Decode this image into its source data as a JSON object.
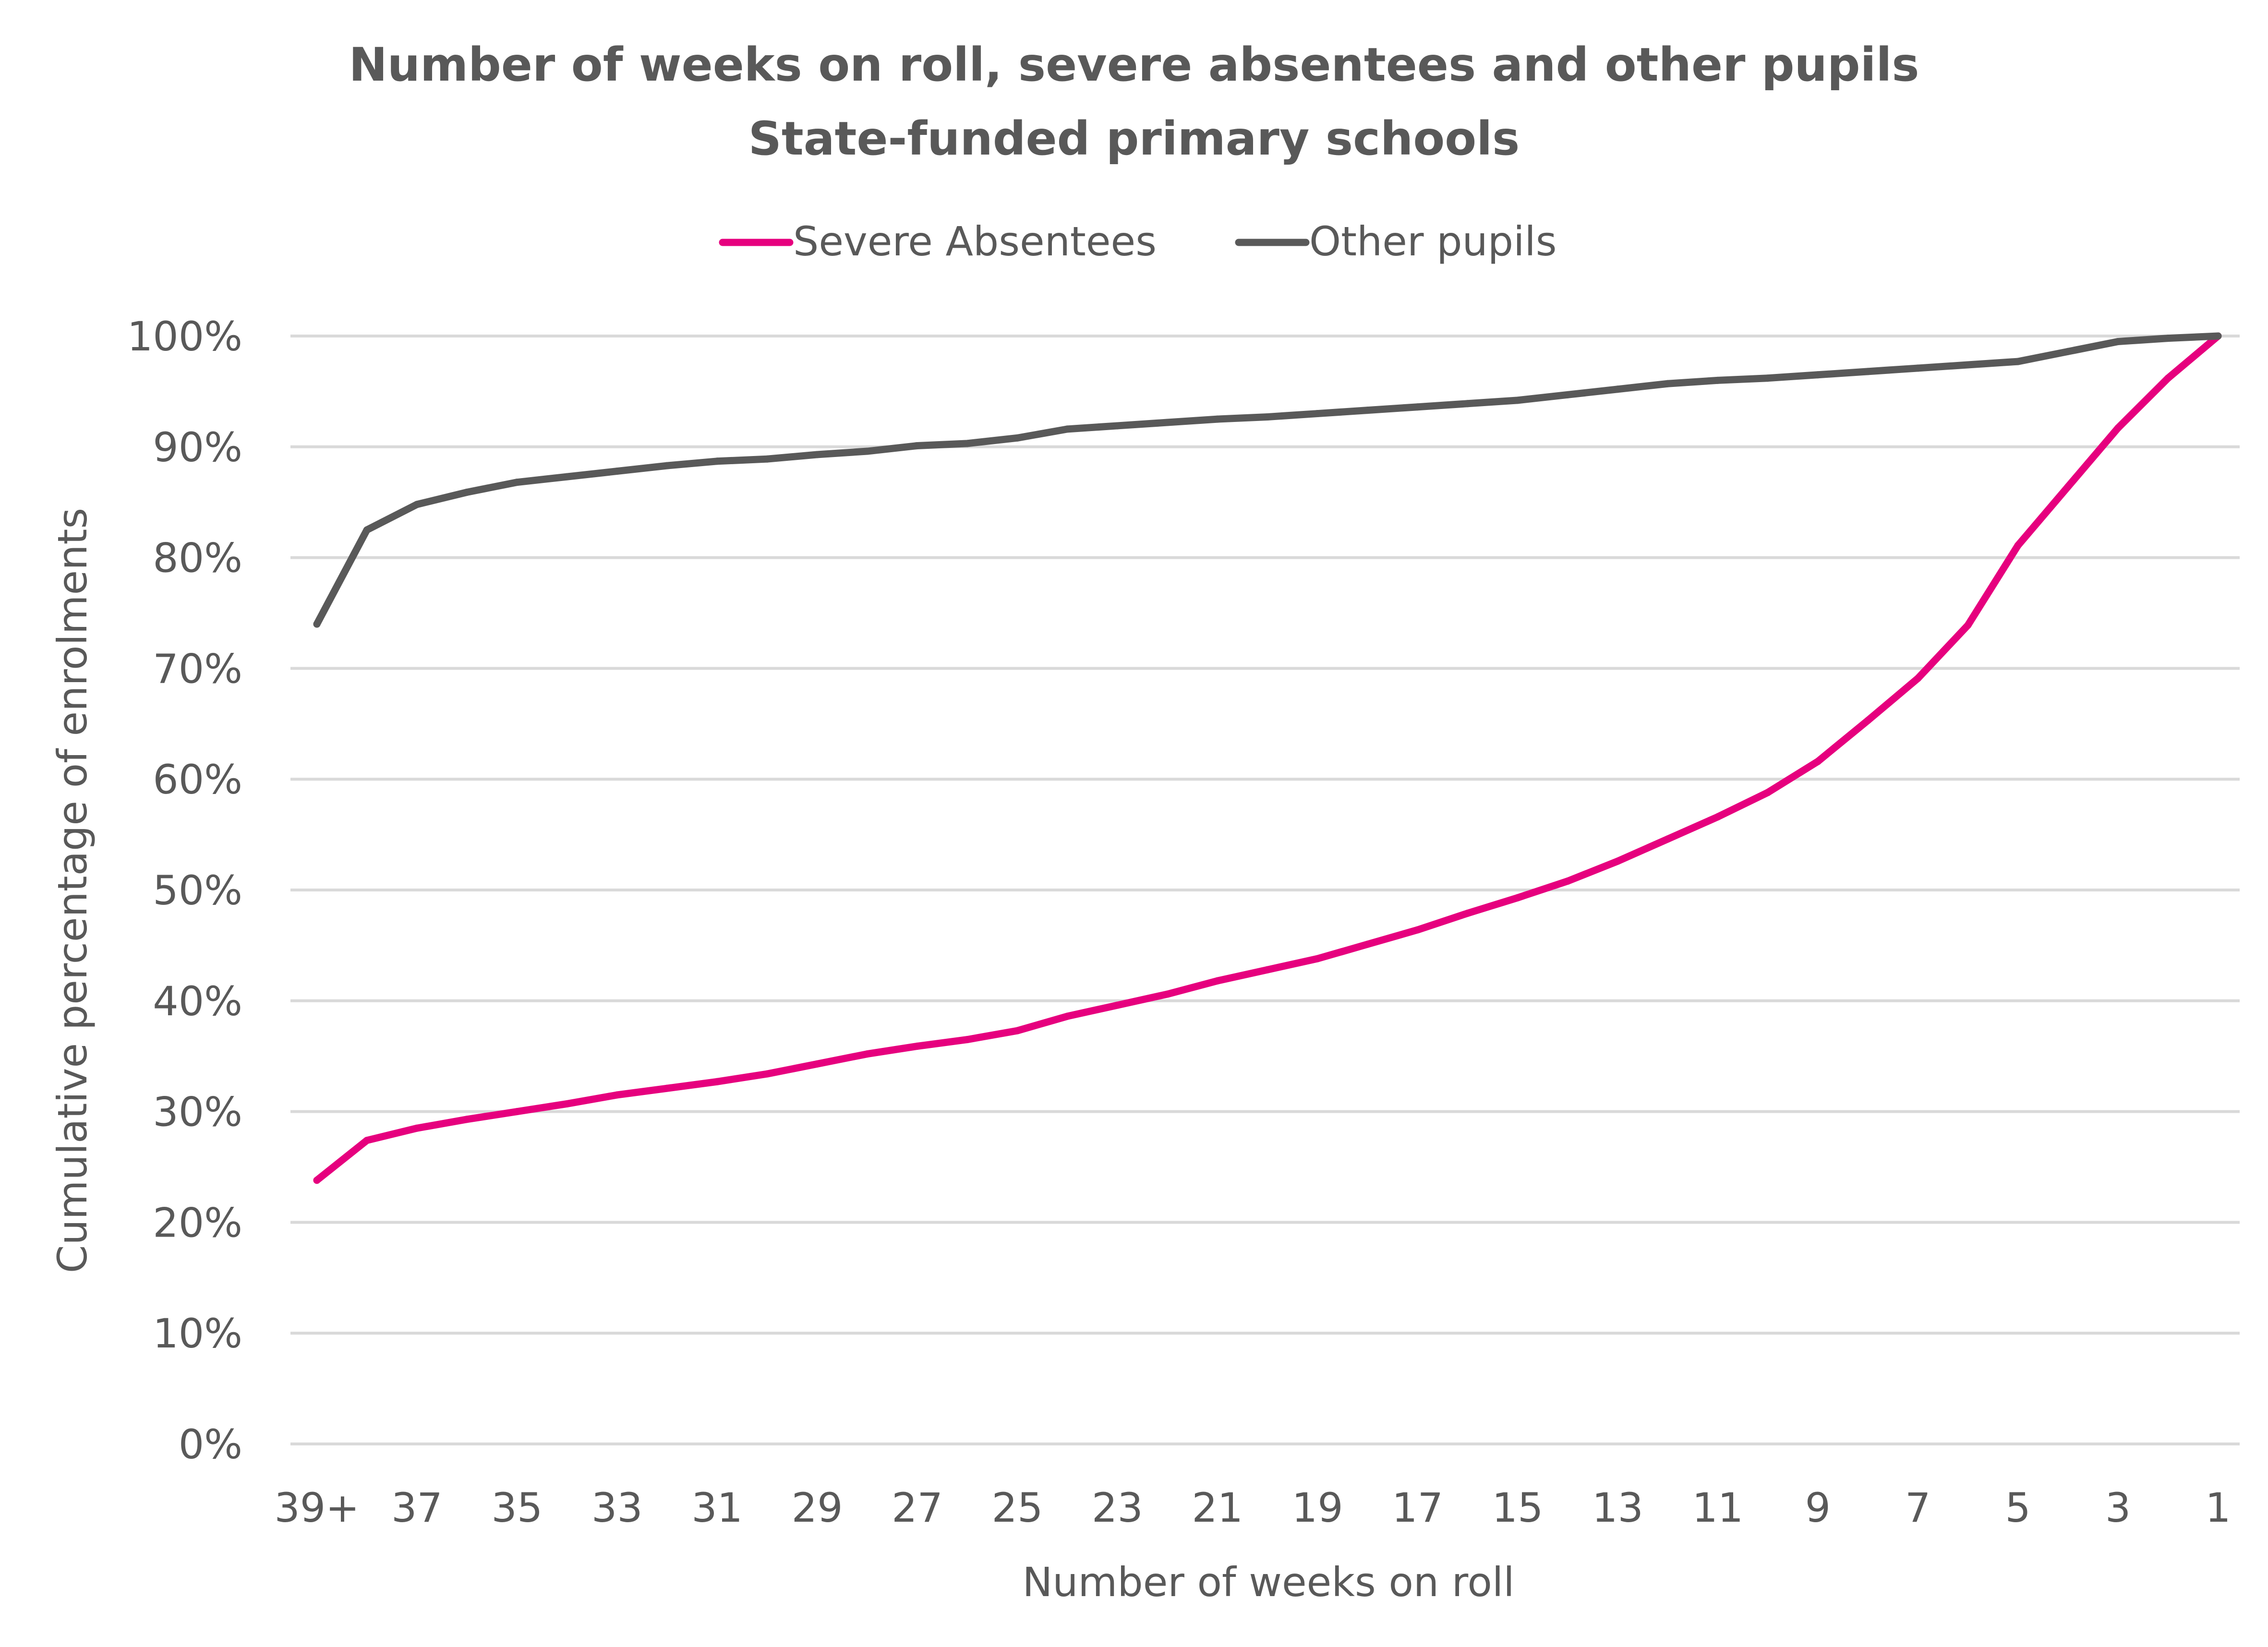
{
  "chart_data": {
    "type": "line",
    "title": "Number of weeks on roll, severe absentees and other pupils",
    "subtitle": "State-funded primary schools",
    "xlabel": "Number of weeks on roll",
    "ylabel": "Cumulative percentage of enrolments",
    "x": [
      "39+",
      "38",
      "37",
      "36",
      "35",
      "34",
      "33",
      "32",
      "31",
      "30",
      "29",
      "28",
      "27",
      "26",
      "25",
      "24",
      "23",
      "22",
      "21",
      "20",
      "19",
      "18",
      "17",
      "16",
      "15",
      "14",
      "13",
      "12",
      "11",
      "10",
      "9",
      "8",
      "7",
      "6",
      "5",
      "4",
      "3",
      "2",
      "1"
    ],
    "x_tick_labels": [
      "39+",
      "37",
      "35",
      "33",
      "31",
      "29",
      "27",
      "25",
      "23",
      "21",
      "19",
      "17",
      "15",
      "13",
      "11",
      "9",
      "7",
      "5",
      "3",
      "1"
    ],
    "y_tick_labels": [
      "0%",
      "10%",
      "20%",
      "30%",
      "40%",
      "50%",
      "60%",
      "70%",
      "80%",
      "90%",
      "100%"
    ],
    "ylim": [
      0,
      100
    ],
    "y_unit": "%",
    "grid": true,
    "legend_position": "top-center",
    "series": [
      {
        "name": "Severe Absentees",
        "color": "#e6007e",
        "values": [
          23.8,
          27.4,
          28.5,
          29.3,
          30.0,
          30.7,
          31.5,
          32.1,
          32.7,
          33.4,
          34.3,
          35.2,
          35.9,
          36.5,
          37.3,
          38.6,
          39.6,
          40.6,
          41.8,
          42.8,
          43.8,
          45.1,
          46.4,
          47.9,
          49.3,
          50.8,
          52.6,
          54.6,
          56.6,
          58.8,
          61.6,
          65.3,
          69.1,
          73.9,
          81.1,
          86.4,
          91.7,
          96.2,
          100.0
        ]
      },
      {
        "name": "Other pupils",
        "color": "#595959",
        "values": [
          74.0,
          82.5,
          84.8,
          85.9,
          86.8,
          87.3,
          87.8,
          88.3,
          88.7,
          88.9,
          89.3,
          89.6,
          90.1,
          90.3,
          90.8,
          91.6,
          91.9,
          92.2,
          92.5,
          92.7,
          93.0,
          93.3,
          93.6,
          93.9,
          94.2,
          94.7,
          95.2,
          95.7,
          96.0,
          96.2,
          96.5,
          96.8,
          97.1,
          97.4,
          97.7,
          98.6,
          99.5,
          99.8,
          100.0
        ]
      }
    ]
  }
}
